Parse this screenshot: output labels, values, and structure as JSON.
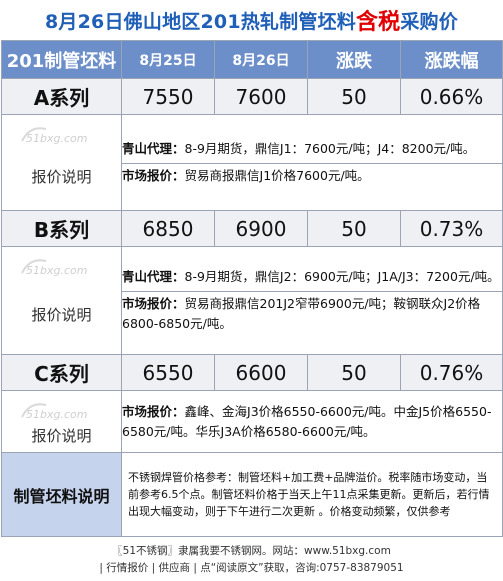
{
  "title": {
    "prefix": "8月26日佛山地区201热轧制管坯料",
    "highlight": "含税",
    "suffix": "采购价"
  },
  "header": {
    "col0": "201制管坯料",
    "col1": "8月25日",
    "col2": "8月26日",
    "col3": "涨跌",
    "col4": "涨跌幅"
  },
  "rows": [
    {
      "name": "A系列",
      "d25": "7550",
      "d26": "7600",
      "chg": "50",
      "pct": "0.66%",
      "label": "报价说明",
      "watermark": "51bxg.com",
      "notes": [
        {
          "k": "青山代理：",
          "v": "8-9月期货，鼎信J1：7600元/吨；J4：8200元/吨。"
        },
        {
          "k": "市场报价：",
          "v": "贸易商报鼎信J1价格7600元/吨。"
        }
      ]
    },
    {
      "name": "B系列",
      "d25": "6850",
      "d26": "6900",
      "chg": "50",
      "pct": "0.73%",
      "label": "报价说明",
      "watermark": "51bxg.com",
      "notes": [
        {
          "k": "青山代理：",
          "v": "8-9月期货，鼎信J2：6900元/吨；J1A/J3：7200元/吨。"
        },
        {
          "k": "市场报价：",
          "v": "贸易商报鼎信201J2窄带6900元/吨；鞍钢联众J2价格6800-6850元/吨。"
        }
      ]
    },
    {
      "name": "C系列",
      "d25": "6550",
      "d26": "6600",
      "chg": "50",
      "pct": "0.76%",
      "label": "报价说明",
      "watermark": "51bxg.com",
      "notes": [
        {
          "k": "市场报价：",
          "v": "鑫峰、金海J3价格6550-6600元/吨。中金J5价格6550-6580元/吨。华乐J3A价格6580-6600元/吨。"
        }
      ]
    }
  ],
  "description": {
    "head": "制管坯料说明",
    "body": "不锈钢焊管价格参考：制管坯料+加工费+品牌溢价。税率随市场变动，当前参考6.5个点。制管坯料价格于当天上午11点采集更新。更新后，若行情出现大幅变动，则于下午进行二次更新 。价格变动频繁，仅供参考"
  },
  "footer": {
    "line1": "〖51不锈钢〗隶属我要不锈钢网。网站：www.51bxg.com",
    "line2": "| 行情报价 | 供应商 | 点“阅读原文”获取，咨询:0757-83879051"
  },
  "colors": {
    "title_blue": "#1f5fb8",
    "title_red": "#e00000",
    "header_bg": "#6c8fca",
    "row_bg": "#eef0f4",
    "desc_bg": "#c5d3ec"
  }
}
